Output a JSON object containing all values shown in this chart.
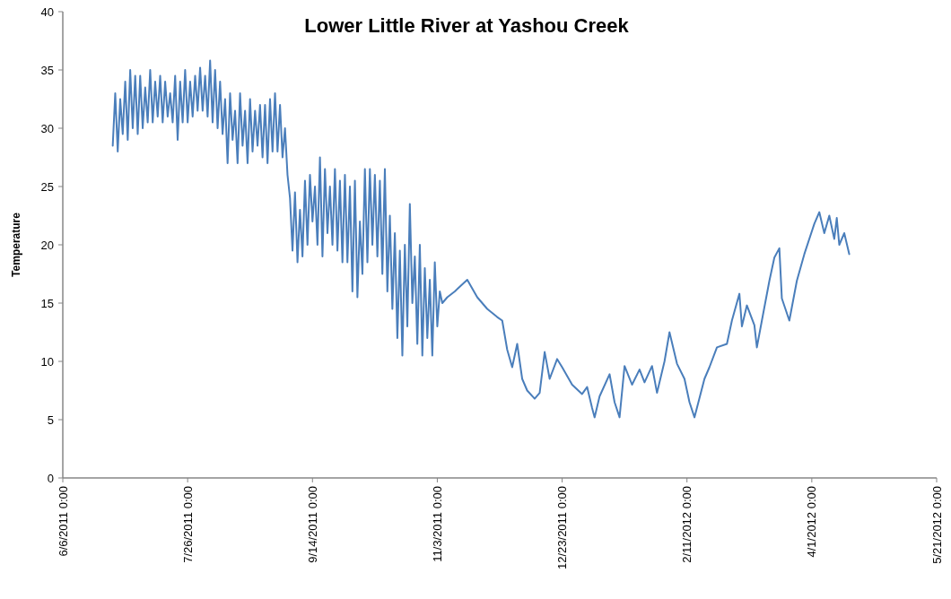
{
  "chart_data": {
    "type": "line",
    "title": "Lower Little River at Yashou Creek",
    "ylabel": "Temperature",
    "xlim": [
      "2011-06-06",
      "2012-05-21"
    ],
    "xticks": [
      {
        "value": "2011-06-06",
        "label": "6/6/2011 0:00"
      },
      {
        "value": "2011-07-26",
        "label": "7/26/2011 0:00"
      },
      {
        "value": "2011-09-14",
        "label": "9/14/2011 0:00"
      },
      {
        "value": "2011-11-03",
        "label": "11/3/2011 0:00"
      },
      {
        "value": "2011-12-23",
        "label": "12/23/2011 0:00"
      },
      {
        "value": "2012-02-11",
        "label": "2/11/2012 0:00"
      },
      {
        "value": "2012-04-01",
        "label": "4/1/2012 0:00"
      },
      {
        "value": "2012-05-21",
        "label": "5/21/2012 0:00"
      }
    ],
    "ylim": [
      0,
      40
    ],
    "yticks": [
      0,
      5,
      10,
      15,
      20,
      25,
      30,
      35,
      40
    ],
    "grid": false,
    "line_style": "solid",
    "series": [
      {
        "color": "#4a7ebb",
        "x": [
          "2011-06-26",
          "2011-06-27",
          "2011-06-28",
          "2011-06-29",
          "2011-06-30",
          "2011-07-01",
          "2011-07-02",
          "2011-07-03",
          "2011-07-04",
          "2011-07-05",
          "2011-07-06",
          "2011-07-07",
          "2011-07-08",
          "2011-07-09",
          "2011-07-10",
          "2011-07-11",
          "2011-07-12",
          "2011-07-13",
          "2011-07-14",
          "2011-07-15",
          "2011-07-16",
          "2011-07-17",
          "2011-07-18",
          "2011-07-19",
          "2011-07-20",
          "2011-07-21",
          "2011-07-22",
          "2011-07-23",
          "2011-07-24",
          "2011-07-25",
          "2011-07-26",
          "2011-07-27",
          "2011-07-28",
          "2011-07-29",
          "2011-07-30",
          "2011-07-31",
          "2011-08-01",
          "2011-08-02",
          "2011-08-03",
          "2011-08-04",
          "2011-08-05",
          "2011-08-06",
          "2011-08-07",
          "2011-08-08",
          "2011-08-09",
          "2011-08-10",
          "2011-08-11",
          "2011-08-12",
          "2011-08-13",
          "2011-08-14",
          "2011-08-15",
          "2011-08-16",
          "2011-08-17",
          "2011-08-18",
          "2011-08-19",
          "2011-08-20",
          "2011-08-21",
          "2011-08-22",
          "2011-08-23",
          "2011-08-24",
          "2011-08-25",
          "2011-08-26",
          "2011-08-27",
          "2011-08-28",
          "2011-08-29",
          "2011-08-30",
          "2011-08-31",
          "2011-09-01",
          "2011-09-02",
          "2011-09-03",
          "2011-09-04",
          "2011-09-05",
          "2011-09-06",
          "2011-09-07",
          "2011-09-08",
          "2011-09-09",
          "2011-09-10",
          "2011-09-11",
          "2011-09-12",
          "2011-09-13",
          "2011-09-14",
          "2011-09-15",
          "2011-09-16",
          "2011-09-17",
          "2011-09-18",
          "2011-09-19",
          "2011-09-20",
          "2011-09-21",
          "2011-09-22",
          "2011-09-23",
          "2011-09-24",
          "2011-09-25",
          "2011-09-26",
          "2011-09-27",
          "2011-09-28",
          "2011-09-29",
          "2011-09-30",
          "2011-10-01",
          "2011-10-02",
          "2011-10-03",
          "2011-10-04",
          "2011-10-05",
          "2011-10-06",
          "2011-10-07",
          "2011-10-08",
          "2011-10-09",
          "2011-10-10",
          "2011-10-11",
          "2011-10-12",
          "2011-10-13",
          "2011-10-14",
          "2011-10-15",
          "2011-10-16",
          "2011-10-17",
          "2011-10-18",
          "2011-10-19",
          "2011-10-20",
          "2011-10-21",
          "2011-10-22",
          "2011-10-23",
          "2011-10-24",
          "2011-10-25",
          "2011-10-26",
          "2011-10-27",
          "2011-10-28",
          "2011-10-29",
          "2011-10-30",
          "2011-10-31",
          "2011-11-01",
          "2011-11-02",
          "2011-11-03",
          "2011-11-04",
          "2011-11-05",
          "2011-11-07",
          "2011-11-10",
          "2011-11-15",
          "2011-11-19",
          "2011-11-23",
          "2011-11-27",
          "2011-11-29",
          "2011-12-01",
          "2011-12-03",
          "2011-12-05",
          "2011-12-07",
          "2011-12-09",
          "2011-12-12",
          "2011-12-14",
          "2011-12-16",
          "2011-12-18",
          "2011-12-21",
          "2011-12-23",
          "2011-12-27",
          "2011-12-31",
          "2012-01-02",
          "2012-01-04",
          "2012-01-05",
          "2012-01-07",
          "2012-01-11",
          "2012-01-13",
          "2012-01-15",
          "2012-01-17",
          "2012-01-20",
          "2012-01-23",
          "2012-01-25",
          "2012-01-28",
          "2012-01-30",
          "2012-02-02",
          "2012-02-04",
          "2012-02-07",
          "2012-02-10",
          "2012-02-12",
          "2012-02-14",
          "2012-02-18",
          "2012-02-20",
          "2012-02-23",
          "2012-02-27",
          "2012-02-29",
          "2012-03-03",
          "2012-03-04",
          "2012-03-06",
          "2012-03-09",
          "2012-03-10",
          "2012-03-12",
          "2012-03-15",
          "2012-03-17",
          "2012-03-19",
          "2012-03-20",
          "2012-03-23",
          "2012-03-26",
          "2012-03-29",
          "2012-04-02",
          "2012-04-04",
          "2012-04-06",
          "2012-04-08",
          "2012-04-10",
          "2012-04-11",
          "2012-04-12",
          "2012-04-14",
          "2012-04-16"
        ],
        "values": [
          28.5,
          33,
          28,
          32.5,
          29.5,
          34,
          29,
          35,
          30,
          34.5,
          29.5,
          34.5,
          30,
          33.5,
          30.5,
          35,
          30.5,
          34,
          31,
          34.5,
          30.5,
          34,
          31,
          33,
          30.5,
          34.5,
          29,
          34,
          30.5,
          35,
          30.5,
          34,
          31,
          34.5,
          31.5,
          35.2,
          31.5,
          34.5,
          31,
          35.8,
          30.5,
          35,
          30,
          34,
          29.5,
          32.5,
          27,
          33,
          29,
          31.5,
          27,
          33,
          28.5,
          31.5,
          27,
          32.5,
          28,
          31.5,
          28.5,
          32,
          27.5,
          32,
          27,
          32.5,
          28,
          33,
          28,
          32,
          27.5,
          30,
          26,
          24,
          19.5,
          24.5,
          18.5,
          23,
          19,
          25.5,
          20,
          26,
          22,
          25,
          20,
          27.5,
          19,
          26.5,
          21,
          25,
          20,
          26.5,
          19.5,
          25.5,
          18.5,
          26,
          18.5,
          25,
          16,
          25.5,
          15.5,
          22,
          17.5,
          26.5,
          18.5,
          26.5,
          20,
          26,
          19,
          25.5,
          17.5,
          26.5,
          16,
          22.5,
          14.5,
          21,
          12,
          19.5,
          10.5,
          20,
          13,
          23.5,
          15,
          19,
          11.5,
          20,
          10.5,
          18,
          12,
          17,
          10.5,
          18.5,
          13,
          16,
          15,
          15.5,
          16,
          17,
          15.5,
          14.5,
          13.8,
          13.5,
          11,
          9.5,
          11.5,
          8.5,
          7.5,
          6.8,
          7.3,
          10.8,
          8.5,
          10.2,
          9.5,
          8,
          7.2,
          7.8,
          6,
          5.2,
          7,
          8.9,
          6.5,
          5.2,
          9.6,
          8,
          9.3,
          8.2,
          9.6,
          7.3,
          10,
          12.5,
          9.8,
          8.5,
          6.5,
          5.2,
          8.5,
          9.5,
          11.2,
          11.5,
          13.5,
          15.8,
          13,
          14.8,
          13.1,
          11.2,
          13.5,
          16.9,
          18.9,
          19.7,
          15.4,
          13.5,
          16.9,
          19.2,
          21.8,
          22.8,
          21,
          22.5,
          20.5,
          22.3,
          20,
          21,
          19.2
        ]
      }
    ]
  }
}
